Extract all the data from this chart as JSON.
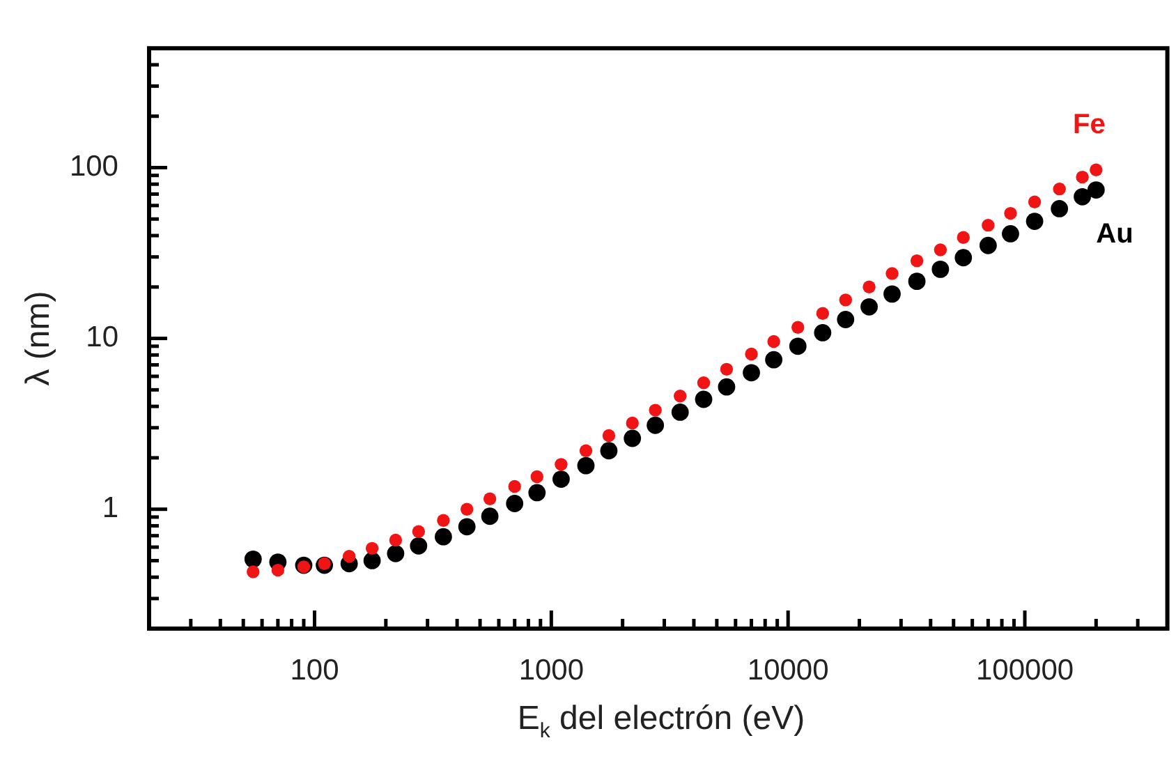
{
  "chart_data": {
    "type": "scatter",
    "xlabel": "E$_{k}$ del electrón (eV)",
    "ylabel": "λ (nm)",
    "log": "xy",
    "grid": false,
    "legend": false,
    "marker": "circle",
    "xlim": [
      20,
      400000
    ],
    "ylim": [
      0.2,
      500
    ],
    "xticks": [
      {
        "value": 30,
        "label": null
      },
      {
        "value": 40,
        "label": null
      },
      {
        "value": 50,
        "label": null
      },
      {
        "value": 60,
        "label": null
      },
      {
        "value": 70,
        "label": null
      },
      {
        "value": 80,
        "label": null
      },
      {
        "value": 90,
        "label": null
      },
      100,
      {
        "value": 200,
        "label": null
      },
      {
        "value": 300,
        "label": null
      },
      {
        "value": 400,
        "label": null
      },
      {
        "value": 500,
        "label": null
      },
      {
        "value": 600,
        "label": null
      },
      {
        "value": 700,
        "label": null
      },
      {
        "value": 800,
        "label": null
      },
      {
        "value": 900,
        "label": null
      },
      1000,
      {
        "value": 2000,
        "label": null
      },
      {
        "value": 3000,
        "label": null
      },
      {
        "value": 4000,
        "label": null
      },
      {
        "value": 5000,
        "label": null
      },
      {
        "value": 6000,
        "label": null
      },
      {
        "value": 7000,
        "label": null
      },
      {
        "value": 8000,
        "label": null
      },
      {
        "value": 9000,
        "label": null
      },
      10000,
      {
        "value": 20000,
        "label": null
      },
      {
        "value": 30000,
        "label": null
      },
      {
        "value": 40000,
        "label": null
      },
      {
        "value": 50000,
        "label": null
      },
      {
        "value": 60000,
        "label": null
      },
      {
        "value": 70000,
        "label": null
      },
      {
        "value": 80000,
        "label": null
      },
      {
        "value": 90000,
        "label": null
      },
      100000,
      {
        "value": 200000,
        "label": null
      },
      {
        "value": 300000,
        "label": null
      }
    ],
    "yticks": [
      {
        "value": 0.3,
        "label": null
      },
      {
        "value": 0.4,
        "label": null
      },
      {
        "value": 0.5,
        "label": null
      },
      {
        "value": 0.6,
        "label": null
      },
      {
        "value": 0.7,
        "label": null
      },
      {
        "value": 0.8,
        "label": null
      },
      {
        "value": 0.9,
        "label": null
      },
      1,
      {
        "value": 2,
        "label": null
      },
      {
        "value": 3,
        "label": null
      },
      {
        "value": 4,
        "label": null
      },
      {
        "value": 5,
        "label": null
      },
      {
        "value": 6,
        "label": null
      },
      {
        "value": 7,
        "label": null
      },
      {
        "value": 8,
        "label": null
      },
      {
        "value": 9,
        "label": null
      },
      10,
      {
        "value": 20,
        "label": null
      },
      {
        "value": 30,
        "label": null
      },
      {
        "value": 40,
        "label": null
      },
      {
        "value": 50,
        "label": null
      },
      {
        "value": 60,
        "label": null
      },
      {
        "value": 70,
        "label": null
      },
      {
        "value": 80,
        "label": null
      },
      {
        "value": 90,
        "label": null
      },
      100,
      {
        "value": 200,
        "label": null
      },
      {
        "value": 300,
        "label": null
      },
      {
        "value": 400,
        "label": null
      }
    ],
    "x": [
      55,
      70,
      90,
      110,
      140,
      175,
      220,
      275,
      350,
      440,
      550,
      700,
      870,
      1100,
      1400,
      1750,
      2200,
      2750,
      3500,
      4400,
      5500,
      7000,
      8700,
      11000,
      14000,
      17500,
      22000,
      27500,
      35000,
      44000,
      55000,
      70000,
      87000,
      110000,
      140000,
      175000,
      200000
    ],
    "series": [
      {
        "name": "Fe",
        "color": "#f01414",
        "values": [
          0.43,
          0.44,
          0.46,
          0.48,
          0.53,
          0.59,
          0.66,
          0.74,
          0.86,
          1.0,
          1.15,
          1.36,
          1.55,
          1.83,
          2.2,
          2.7,
          3.2,
          3.8,
          4.6,
          5.5,
          6.6,
          8.1,
          9.6,
          11.6,
          14,
          16.8,
          20,
          24,
          28.5,
          33,
          39,
          46,
          54,
          63,
          75,
          88,
          97
        ]
      },
      {
        "name": "Au",
        "color": "#000000",
        "values": [
          0.51,
          0.49,
          0.47,
          0.47,
          0.48,
          0.5,
          0.55,
          0.61,
          0.69,
          0.79,
          0.91,
          1.08,
          1.25,
          1.5,
          1.8,
          2.2,
          2.6,
          3.1,
          3.7,
          4.4,
          5.2,
          6.3,
          7.5,
          9.0,
          10.8,
          12.9,
          15.3,
          18.2,
          21.6,
          25.4,
          29.7,
          35,
          41,
          48.5,
          57.5,
          67.5,
          74
        ]
      }
    ]
  }
}
